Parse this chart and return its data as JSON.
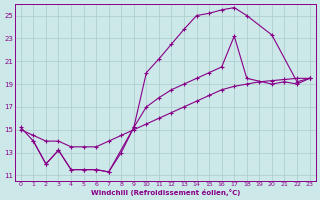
{
  "xlabel": "Windchill (Refroidissement éolien,°C)",
  "bg_color": "#cce8e8",
  "line_color": "#880088",
  "grid_color": "#aacccc",
  "xlim": [
    -0.5,
    23.5
  ],
  "ylim": [
    10.5,
    26.0
  ],
  "xticks": [
    0,
    1,
    2,
    3,
    4,
    5,
    6,
    7,
    8,
    9,
    10,
    11,
    12,
    13,
    14,
    15,
    16,
    17,
    18,
    19,
    20,
    21,
    22,
    23
  ],
  "yticks": [
    11,
    13,
    15,
    17,
    19,
    21,
    23,
    25
  ],
  "line1_x": [
    0,
    1,
    2,
    3,
    4,
    5,
    6,
    7,
    8,
    9,
    10,
    11,
    12,
    13,
    14,
    15,
    16,
    17,
    18,
    19,
    20,
    21,
    22,
    23
  ],
  "line1_y": [
    15.0,
    14.5,
    14.0,
    14.0,
    13.5,
    13.5,
    13.5,
    14.0,
    14.5,
    15.0,
    15.5,
    16.0,
    16.5,
    17.0,
    17.5,
    18.0,
    18.5,
    18.8,
    19.0,
    19.2,
    19.3,
    19.4,
    19.5,
    19.5
  ],
  "line2_x": [
    0,
    1,
    2,
    3,
    4,
    5,
    6,
    7,
    9,
    10,
    11,
    12,
    13,
    14,
    15,
    16,
    17,
    18,
    20,
    22,
    23
  ],
  "line2_y": [
    15.2,
    14.0,
    12.0,
    13.2,
    11.5,
    11.5,
    11.5,
    11.3,
    15.2,
    20.0,
    21.2,
    22.5,
    23.8,
    25.0,
    25.2,
    25.5,
    25.7,
    25.0,
    23.3,
    19.2,
    19.5
  ],
  "line3_x": [
    1,
    2,
    3,
    4,
    5,
    6,
    7,
    8,
    9,
    10,
    11,
    12,
    13,
    14,
    15,
    16,
    17,
    18,
    20,
    21,
    22,
    23
  ],
  "line3_y": [
    14.0,
    12.0,
    13.2,
    11.5,
    11.5,
    11.5,
    11.3,
    13.0,
    15.2,
    17.0,
    17.8,
    18.5,
    19.0,
    19.5,
    20.0,
    20.5,
    23.2,
    19.5,
    19.0,
    19.2,
    19.0,
    19.5
  ]
}
